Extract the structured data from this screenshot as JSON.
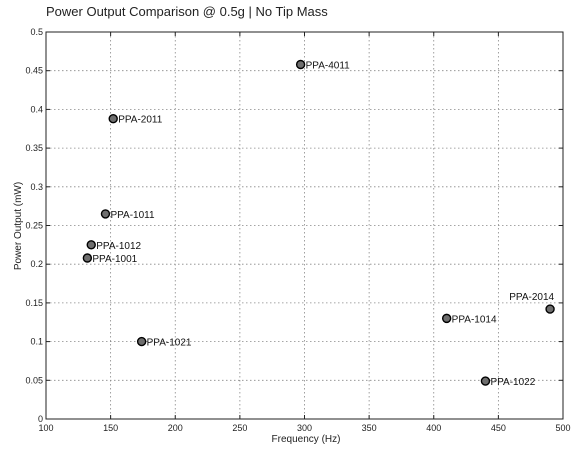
{
  "chart_data": {
    "type": "scatter",
    "title": "Power Output Comparison @ 0.5g  |  No Tip Mass",
    "xlabel": "Frequency (Hz)",
    "ylabel": "Power Output (mW)",
    "xlim": [
      100,
      500
    ],
    "ylim": [
      0,
      0.5
    ],
    "xticks": [
      100,
      150,
      200,
      250,
      300,
      350,
      400,
      450,
      500
    ],
    "yticks": [
      0,
      0.05,
      0.1,
      0.15,
      0.2,
      0.25,
      0.3,
      0.35,
      0.4,
      0.45,
      0.5
    ],
    "xtick_labels": [
      "100",
      "150",
      "200",
      "250",
      "300",
      "350",
      "400",
      "450",
      "500"
    ],
    "ytick_labels": [
      "0",
      "0.05",
      "0.1",
      "0.15",
      "0.2",
      "0.25",
      "0.3",
      "0.35",
      "0.4",
      "0.45",
      "0.5"
    ],
    "grid": true,
    "marker_color": "#6e6e6e",
    "points": [
      {
        "label": "PPA-4011",
        "x": 297,
        "y": 0.458,
        "label_pos": "right"
      },
      {
        "label": "PPA-2011",
        "x": 152,
        "y": 0.388,
        "label_pos": "right"
      },
      {
        "label": "PPA-1011",
        "x": 146,
        "y": 0.265,
        "label_pos": "right"
      },
      {
        "label": "PPA-1012",
        "x": 135,
        "y": 0.225,
        "label_pos": "right"
      },
      {
        "label": "PPA-1001",
        "x": 132,
        "y": 0.208,
        "label_pos": "right"
      },
      {
        "label": "PPA-1021",
        "x": 174,
        "y": 0.1,
        "label_pos": "right"
      },
      {
        "label": "PPA-2014",
        "x": 490,
        "y": 0.142,
        "label_pos": "above-left"
      },
      {
        "label": "PPA-1014",
        "x": 410,
        "y": 0.13,
        "label_pos": "right"
      },
      {
        "label": "PPA-1022",
        "x": 440,
        "y": 0.049,
        "label_pos": "right"
      }
    ]
  }
}
